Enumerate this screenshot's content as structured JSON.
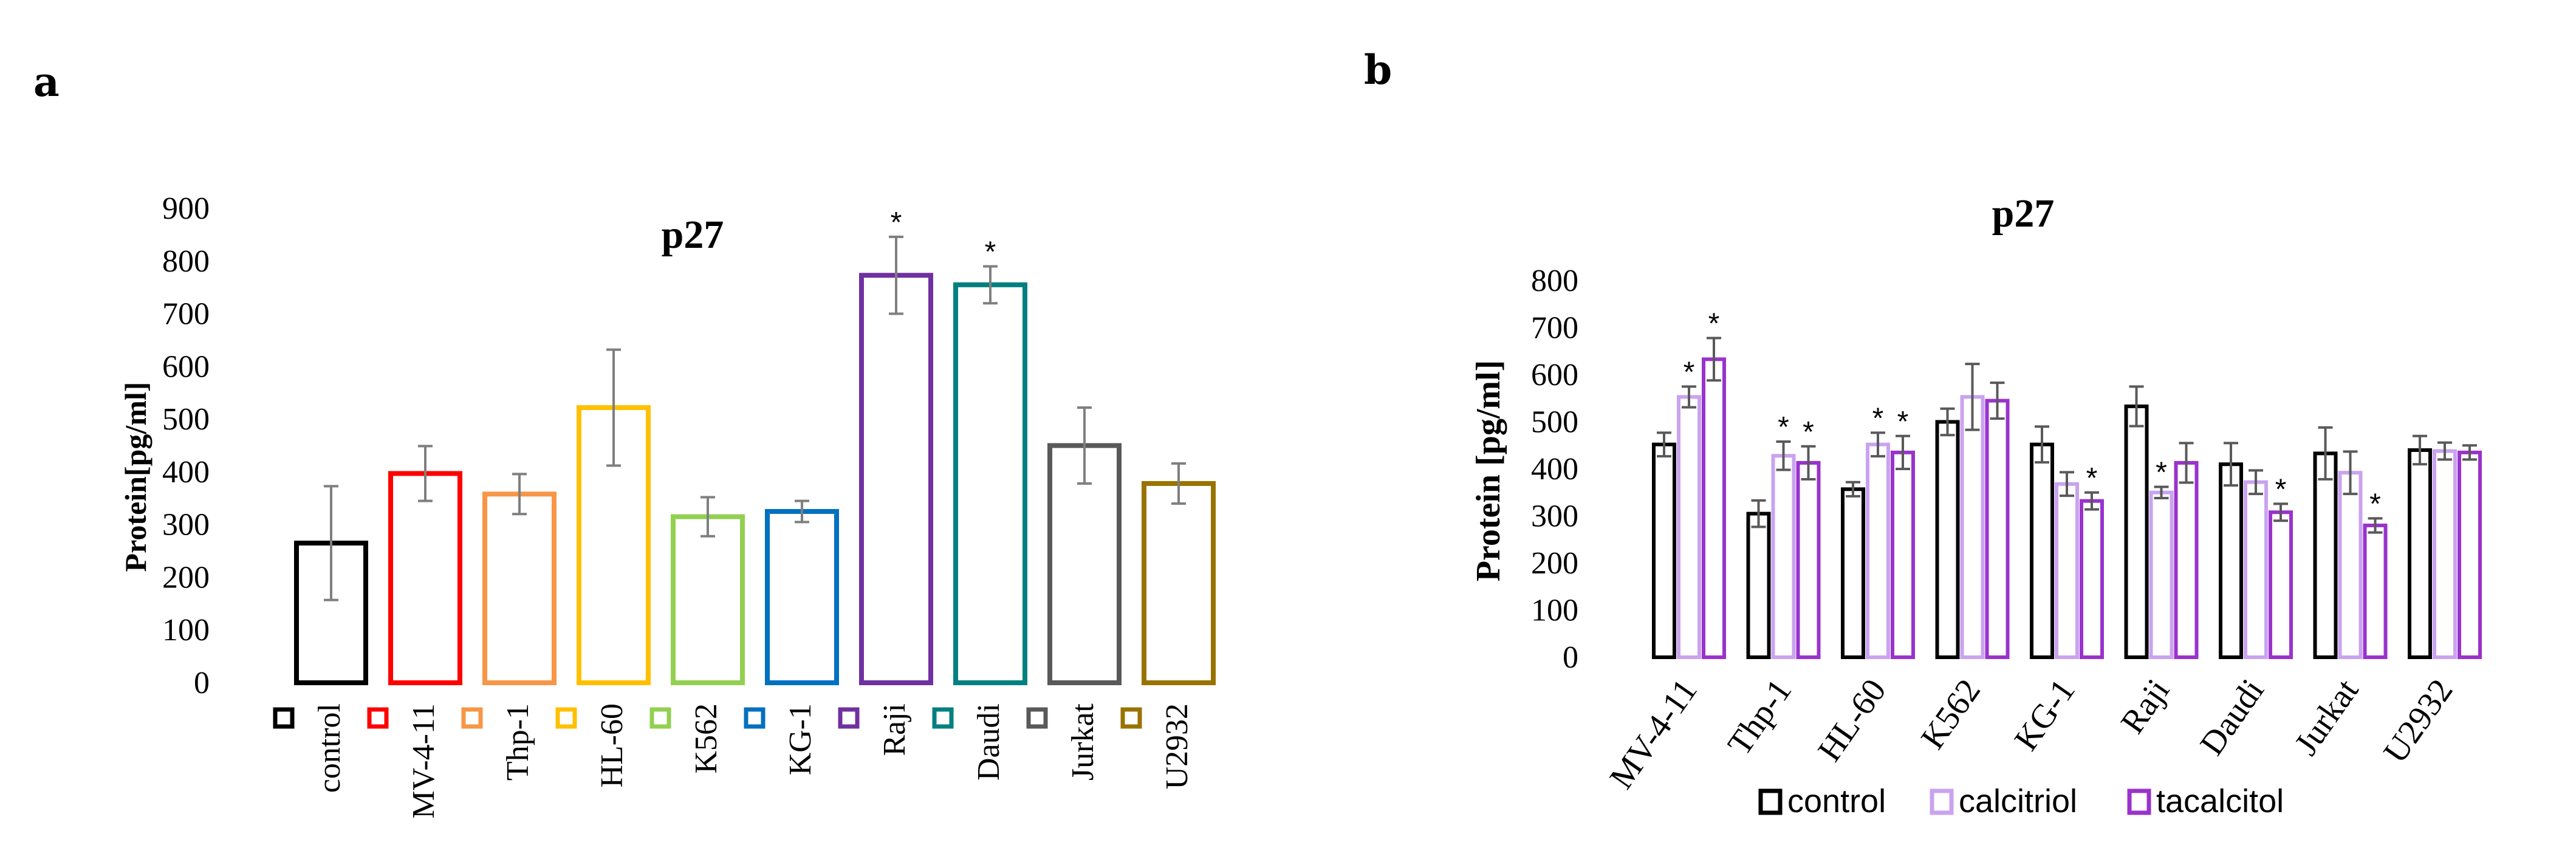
{
  "panel_labels": {
    "a": "a",
    "b": "b"
  },
  "chart_data": [
    {
      "type": "bar",
      "panel": "a",
      "title": "p27",
      "xlabel": "",
      "ylabel": "Protein[pg/ml]",
      "ylim": [
        0,
        900
      ],
      "yticks": [
        0,
        100,
        200,
        300,
        400,
        500,
        600,
        700,
        800,
        900
      ],
      "categories": [
        "control",
        "MV-4-11",
        "Thp-1",
        "HL-60",
        "K562",
        "KG-1",
        "Raji",
        "Daudi",
        "Jurkat",
        "U2932"
      ],
      "values": [
        265,
        397,
        358,
        522,
        315,
        325,
        773,
        755,
        450,
        378
      ],
      "errors": [
        108,
        52,
        38,
        110,
        37,
        20,
        73,
        35,
        72,
        38
      ],
      "significant": [
        false,
        false,
        false,
        false,
        false,
        false,
        true,
        true,
        false,
        false
      ],
      "significance_mark": "*",
      "colors": [
        "#000000",
        "#ff0000",
        "#f79646",
        "#ffc000",
        "#92d050",
        "#0070c0",
        "#7030a0",
        "#008080",
        "#595959",
        "#997300"
      ],
      "legend_position": "bottom-inline",
      "grid": false
    },
    {
      "type": "bar",
      "panel": "b",
      "title": "p27",
      "xlabel": "",
      "ylabel": "Protein [pg/ml]",
      "ylim": [
        0,
        800
      ],
      "yticks": [
        0,
        100,
        200,
        300,
        400,
        500,
        600,
        700,
        800
      ],
      "categories": [
        "MV-4-11",
        "Thp-1",
        "HL-60",
        "K562",
        "KG-1",
        "Raji",
        "Daudi",
        "Jurkat",
        "U2932"
      ],
      "series": [
        {
          "name": "control",
          "color": "#000000",
          "values": [
            452,
            305,
            357,
            500,
            452,
            533,
            410,
            433,
            440
          ],
          "errors": [
            25,
            28,
            15,
            28,
            38,
            42,
            45,
            55,
            30
          ],
          "significant": [
            false,
            false,
            false,
            false,
            false,
            false,
            false,
            false,
            false
          ]
        },
        {
          "name": "calcitriol",
          "color": "#c9a3f0",
          "values": [
            553,
            428,
            452,
            553,
            368,
            350,
            372,
            392,
            438
          ],
          "errors": [
            22,
            30,
            25,
            70,
            25,
            12,
            25,
            45,
            18
          ],
          "significant": [
            true,
            true,
            true,
            false,
            false,
            true,
            false,
            false,
            false
          ]
        },
        {
          "name": "tacalcitol",
          "color": "#9933cc",
          "values": [
            633,
            413,
            435,
            545,
            332,
            413,
            308,
            280,
            435
          ],
          "errors": [
            45,
            35,
            35,
            38,
            18,
            42,
            18,
            15,
            15
          ],
          "significant": [
            true,
            true,
            true,
            false,
            true,
            false,
            true,
            true,
            false
          ]
        }
      ],
      "significance_mark": "*",
      "legend_position": "bottom",
      "grid": false
    }
  ]
}
